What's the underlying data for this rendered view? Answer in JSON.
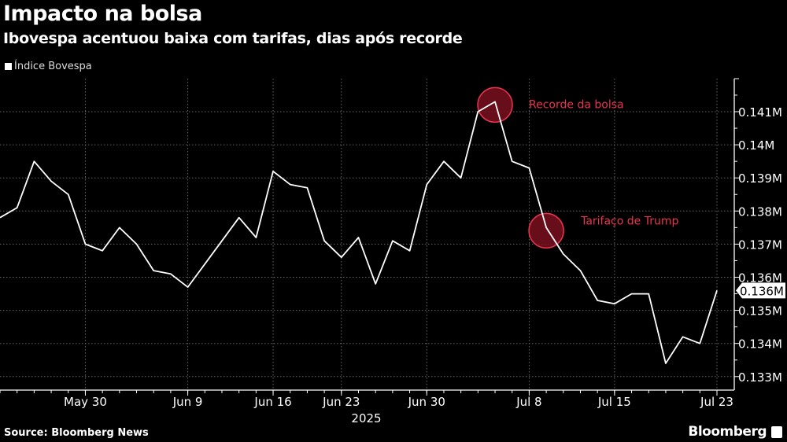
{
  "chart_data": {
    "type": "line",
    "title": "Impacto na bolsa",
    "subtitle": "Ibovespa acentuou baixa com tarifas, dias após recorde",
    "legend": [
      "Índice Bovespa"
    ],
    "legend_placement": "top-left",
    "series": [
      {
        "name": "Índice Bovespa",
        "color": "#ffffff",
        "x": [
          "2025-05-23",
          "2025-05-26",
          "2025-05-27",
          "2025-05-28",
          "2025-05-29",
          "2025-05-30",
          "2025-06-02",
          "2025-06-03",
          "2025-06-04",
          "2025-06-05",
          "2025-06-06",
          "2025-06-09",
          "2025-06-10",
          "2025-06-11",
          "2025-06-12",
          "2025-06-13",
          "2025-06-16",
          "2025-06-17",
          "2025-06-18",
          "2025-06-20",
          "2025-06-23",
          "2025-06-24",
          "2025-06-25",
          "2025-06-26",
          "2025-06-27",
          "2025-06-30",
          "2025-07-01",
          "2025-07-02",
          "2025-07-03",
          "2025-07-04",
          "2025-07-07",
          "2025-07-08",
          "2025-07-09",
          "2025-07-10",
          "2025-07-11",
          "2025-07-14",
          "2025-07-15",
          "2025-07-16",
          "2025-07-17",
          "2025-07-18",
          "2025-07-21",
          "2025-07-22",
          "2025-07-23"
        ],
        "values": [
          137.8,
          138.1,
          139.5,
          138.9,
          138.5,
          137.0,
          136.8,
          137.5,
          137.0,
          136.2,
          136.1,
          135.7,
          136.4,
          137.1,
          137.8,
          137.2,
          139.2,
          138.8,
          138.7,
          137.1,
          136.6,
          137.2,
          135.8,
          137.1,
          136.8,
          138.8,
          139.5,
          139.0,
          141.0,
          141.3,
          139.5,
          139.3,
          137.5,
          136.7,
          136.2,
          135.3,
          135.2,
          135.5,
          135.5,
          133.4,
          134.2,
          134.0,
          135.6
        ]
      }
    ],
    "value_unit": "thousand points",
    "x_ticks": [
      {
        "date": "2025-05-30",
        "label": "May 30"
      },
      {
        "date": "2025-06-09",
        "label": "Jun 9"
      },
      {
        "date": "2025-06-16",
        "label": "Jun 16"
      },
      {
        "date": "2025-06-23",
        "label": "Jun 23"
      },
      {
        "date": "2025-06-30",
        "label": "Jun 30"
      },
      {
        "date": "2025-07-08",
        "label": "Jul 8"
      },
      {
        "date": "2025-07-15",
        "label": "Jul 15"
      },
      {
        "date": "2025-07-23",
        "label": "Jul 23"
      }
    ],
    "x_year_label": "2025",
    "y_ticks": [
      {
        "value": 141,
        "label": "0.141M"
      },
      {
        "value": 140,
        "label": "0.14M"
      },
      {
        "value": 139,
        "label": "0.139M"
      },
      {
        "value": 138,
        "label": "0.138M"
      },
      {
        "value": 137,
        "label": "0.137M"
      },
      {
        "value": 136,
        "label": "0.136M"
      },
      {
        "value": 135,
        "label": "0.135M"
      },
      {
        "value": 134,
        "label": "0.134M"
      },
      {
        "value": 133,
        "label": "0.133M"
      }
    ],
    "ylim": [
      132.9,
      142.0
    ],
    "y_axis_position": "right",
    "grid": true,
    "last_value_label": "0.136M",
    "annotations": [
      {
        "date": "2025-07-04",
        "value": 141.3,
        "text": "Recorde da bolsa"
      },
      {
        "date": "2025-07-09",
        "value": 137.5,
        "text": "Tarifaço de Trump"
      }
    ],
    "annotation_color": "#e8354f"
  },
  "footer": {
    "source": "Source: Bloomberg News",
    "brand": "Bloomberg"
  }
}
